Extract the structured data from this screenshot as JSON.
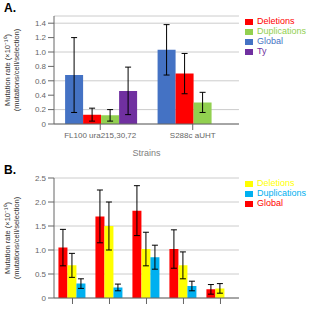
{
  "chart_data": [
    {
      "type": "bar",
      "title": "A.",
      "x_label": "Strains",
      "y_label": "Mutation rate (×10⁻¹⁰)\n(mutations/cell/selection)",
      "categories": [
        "FL100 ura215,30,72",
        "S288c aUHT"
      ],
      "series": [
        {
          "name": "Global",
          "color": "#4472C4",
          "values": [
            0.68,
            1.03
          ],
          "yerr": [
            0.52,
            0.35
          ]
        },
        {
          "name": "Deletions",
          "color": "#FF0000",
          "values": [
            0.13,
            0.7
          ],
          "yerr": [
            0.09,
            0.28
          ]
        },
        {
          "name": "Duplications",
          "color": "#92D050",
          "values": [
            0.12,
            0.3
          ],
          "yerr": [
            0.08,
            0.14
          ]
        },
        {
          "name": "Ty",
          "color": "#7030A0",
          "values": [
            0.46,
            null
          ],
          "yerr": [
            0.33,
            null
          ]
        }
      ],
      "ylim": [
        0,
        1.5
      ],
      "yticks": [
        0,
        0.2,
        0.4,
        0.6,
        0.8,
        {
          "value": 1.0,
          "label": "1.0"
        },
        1.2,
        1.4
      ],
      "grid": true,
      "legend": "right"
    },
    {
      "type": "bar",
      "title": "B.",
      "y_label": "Mutation rate (×10⁻¹⁰)\n(mutations/cell/selection)",
      "categories": [
        null,
        null,
        null,
        null,
        null
      ],
      "series": [
        {
          "name": "Global",
          "color": "#FF0000",
          "values": [
            1.05,
            1.7,
            1.82,
            1.02,
            0.18
          ],
          "yerr": [
            0.38,
            0.55,
            0.52,
            0.4,
            0.1
          ]
        },
        {
          "name": "Deletions",
          "color": "#FFFF00",
          "values": [
            0.68,
            1.5,
            1.02,
            0.68,
            0.2
          ],
          "yerr": [
            0.25,
            0.5,
            0.35,
            0.28,
            0.1
          ]
        },
        {
          "name": "Duplications",
          "color": "#00B0F0",
          "values": [
            0.3,
            0.22,
            0.85,
            0.25,
            0.0
          ],
          "yerr": [
            0.1,
            0.07,
            0.25,
            0.1,
            0.0
          ]
        }
      ],
      "ylim": [
        0,
        2.5
      ],
      "yticks": [
        0,
        0.5,
        {
          "value": 1.0,
          "label": "1.0"
        },
        1.5,
        {
          "value": 2.0,
          "label": "2.0"
        },
        2.5
      ],
      "grid": true,
      "legend": "right"
    }
  ]
}
